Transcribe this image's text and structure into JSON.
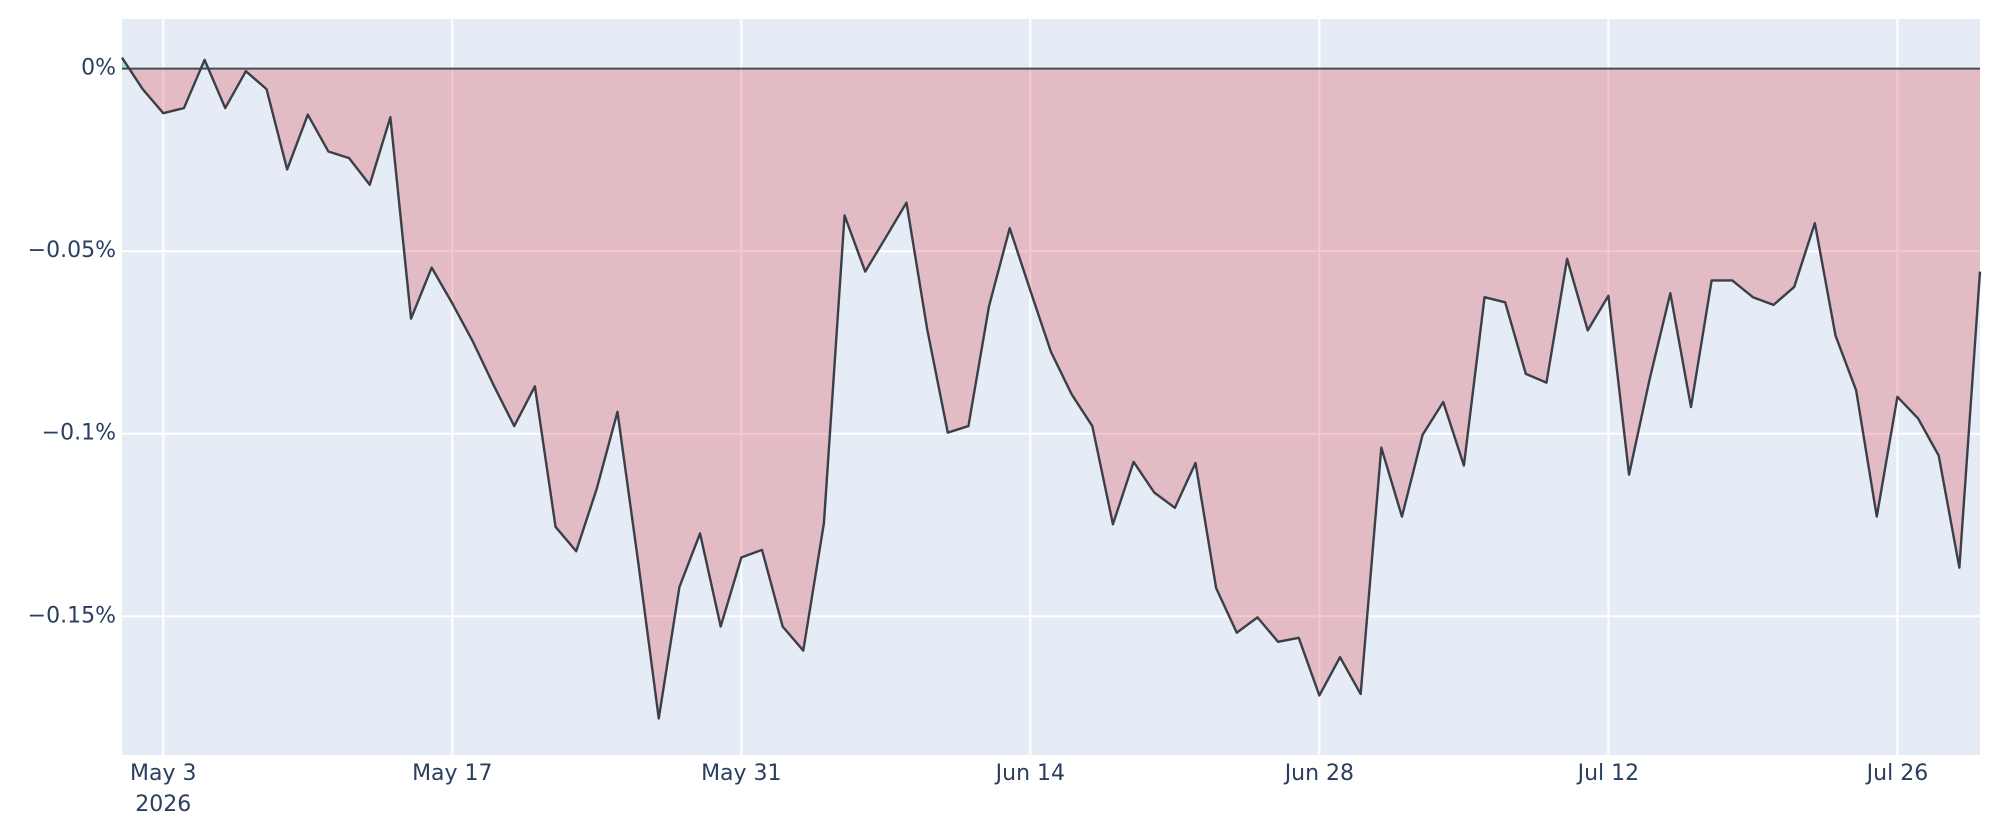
{
  "chart_data": {
    "type": "line",
    "x": [
      "2026-05-01",
      "2026-05-02",
      "2026-05-03",
      "2026-05-04",
      "2026-05-05",
      "2026-05-06",
      "2026-05-07",
      "2026-05-08",
      "2026-05-09",
      "2026-05-10",
      "2026-05-11",
      "2026-05-12",
      "2026-05-13",
      "2026-05-14",
      "2026-05-15",
      "2026-05-16",
      "2026-05-17",
      "2026-05-18",
      "2026-05-19",
      "2026-05-20",
      "2026-05-21",
      "2026-05-22",
      "2026-05-23",
      "2026-05-24",
      "2026-05-25",
      "2026-05-26",
      "2026-05-27",
      "2026-05-28",
      "2026-05-29",
      "2026-05-30",
      "2026-05-31",
      "2026-06-01",
      "2026-06-02",
      "2026-06-03",
      "2026-06-04",
      "2026-06-05",
      "2026-06-06",
      "2026-06-07",
      "2026-06-08",
      "2026-06-09",
      "2026-06-10",
      "2026-06-11",
      "2026-06-12",
      "2026-06-13",
      "2026-06-14",
      "2026-06-15",
      "2026-06-16",
      "2026-06-17",
      "2026-06-18",
      "2026-06-19",
      "2026-06-20",
      "2026-06-21",
      "2026-06-22",
      "2026-06-23",
      "2026-06-24",
      "2026-06-25",
      "2026-06-26",
      "2026-06-27",
      "2026-06-28",
      "2026-06-29",
      "2026-06-30",
      "2026-07-01",
      "2026-07-02",
      "2026-07-03",
      "2026-07-04",
      "2026-07-05",
      "2026-07-06",
      "2026-07-07",
      "2026-07-08",
      "2026-07-09",
      "2026-07-10",
      "2026-07-11",
      "2026-07-12",
      "2026-07-13",
      "2026-07-14",
      "2026-07-15",
      "2026-07-16",
      "2026-07-17",
      "2026-07-18",
      "2026-07-19",
      "2026-07-20",
      "2026-07-21",
      "2026-07-22",
      "2026-07-23",
      "2026-07-24",
      "2026-07-25",
      "2026-07-26",
      "2026-07-27",
      "2026-07-28",
      "2026-07-29",
      "2026-07-30"
    ],
    "series": [
      {
        "color": "#3b3f48",
        "values": [
          0.003,
          -0.0056,
          -0.0122,
          -0.0108,
          0.0024,
          -0.0108,
          -0.0007,
          -0.0056,
          -0.0276,
          -0.0126,
          -0.0227,
          -0.0245,
          -0.0318,
          -0.0133,
          -0.0685,
          -0.0545,
          -0.0643,
          -0.0748,
          -0.0867,
          -0.0979,
          -0.087,
          -0.1255,
          -0.1322,
          -0.115,
          -0.094,
          -0.135,
          -0.178,
          -0.142,
          -0.1273,
          -0.1528,
          -0.1339,
          -0.1318,
          -0.1528,
          -0.1594,
          -0.1245,
          -0.0402,
          -0.0556,
          -0.0462,
          -0.0367,
          -0.0713,
          -0.0997,
          -0.0979,
          -0.065,
          -0.0437,
          -0.0608,
          -0.0776,
          -0.0892,
          -0.0979,
          -0.1248,
          -0.1077,
          -0.1161,
          -0.1203,
          -0.108,
          -0.1423,
          -0.1545,
          -0.1503,
          -0.157,
          -0.1559,
          -0.1717,
          -0.1612,
          -0.1713,
          -0.1038,
          -0.1227,
          -0.1003,
          -0.0913,
          -0.1087,
          -0.0626,
          -0.064,
          -0.0836,
          -0.086,
          -0.0521,
          -0.0717,
          -0.0622,
          -0.1112,
          -0.085,
          -0.0615,
          -0.0927,
          -0.058,
          -0.058,
          -0.0626,
          -0.0647,
          -0.0598,
          -0.0423,
          -0.0731,
          -0.0881,
          -0.1227,
          -0.0899,
          -0.0958,
          -0.106,
          -0.1367,
          -0.0556
        ]
      }
    ],
    "negative_fill": "rgba(220,60,70,0.28)",
    "positive_fill": "rgba(0,204,150,0.3)",
    "xlim": [
      "2026-05-01",
      "2026-07-30"
    ],
    "xticks": [
      {
        "value": "2026-05-03",
        "label": "May 3"
      },
      {
        "value": "2026-05-17",
        "label": "May 17"
      },
      {
        "value": "2026-05-31",
        "label": "May 31"
      },
      {
        "value": "2026-06-14",
        "label": "Jun 14"
      },
      {
        "value": "2026-06-28",
        "label": "Jun 28"
      },
      {
        "value": "2026-07-12",
        "label": "Jul 12"
      },
      {
        "value": "2026-07-26",
        "label": "Jul 26"
      }
    ],
    "x_year_label": "2026",
    "ylim": [
      -0.188,
      0.0136
    ],
    "yticks": [
      {
        "value": 0,
        "label": "0%"
      },
      {
        "value": -0.05,
        "label": "−0.05%"
      },
      {
        "value": -0.1,
        "label": "−0.1%"
      },
      {
        "value": -0.15,
        "label": "−0.15%"
      }
    ],
    "grid": true
  }
}
